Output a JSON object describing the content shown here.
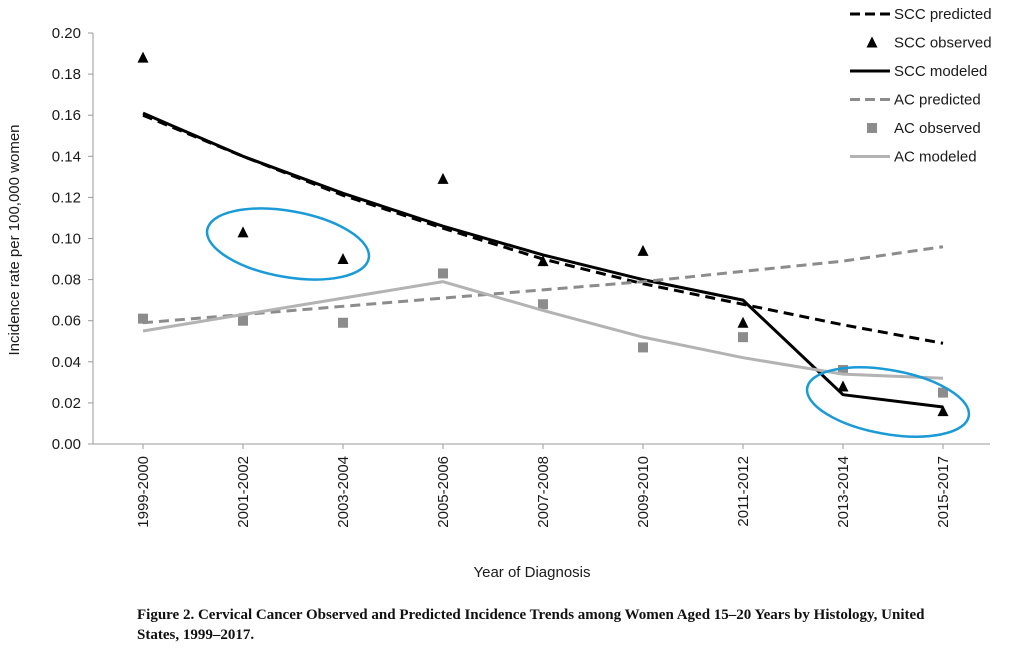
{
  "chart_data": {
    "type": "line",
    "title": "",
    "xlabel": "Year of Diagnosis",
    "ylabel": "Incidence rate per 100,000 women",
    "ylim": [
      0,
      0.2
    ],
    "yticks": [
      "0.00",
      "0.02",
      "0.04",
      "0.06",
      "0.08",
      "0.10",
      "0.12",
      "0.14",
      "0.16",
      "0.18",
      "0.20"
    ],
    "categories": [
      "1999-2000",
      "2001-2002",
      "2003-2004",
      "2005-2006",
      "2007-2008",
      "2009-2010",
      "2011-2012",
      "2013-2014",
      "2015-2017"
    ],
    "legend_position": "top-right",
    "series": [
      {
        "name": "SCC predicted",
        "style": "dashed-line",
        "color": "#000000",
        "values": [
          0.16,
          0.14,
          0.121,
          0.105,
          0.09,
          0.078,
          0.068,
          0.058,
          0.049
        ]
      },
      {
        "name": "SCC observed",
        "style": "triangle-marker",
        "color": "#000000",
        "values": [
          0.188,
          0.103,
          0.09,
          0.129,
          0.089,
          0.094,
          0.059,
          0.028,
          0.016
        ]
      },
      {
        "name": "SCC modeled",
        "style": "solid-line",
        "color": "#000000",
        "values": [
          0.161,
          0.14,
          0.122,
          0.106,
          0.092,
          0.08,
          0.07,
          0.024,
          0.018
        ]
      },
      {
        "name": "AC predicted",
        "style": "dashed-line",
        "color": "#8c8c8c",
        "values": [
          0.059,
          0.063,
          0.067,
          0.071,
          0.075,
          0.079,
          0.084,
          0.089,
          0.096
        ]
      },
      {
        "name": "AC observed",
        "style": "square-marker",
        "color": "#8c8c8c",
        "values": [
          0.061,
          0.06,
          0.059,
          0.083,
          0.068,
          0.047,
          0.052,
          0.036,
          0.025
        ]
      },
      {
        "name": "AC modeled",
        "style": "solid-line",
        "color": "#b3b3b3",
        "values": [
          0.055,
          0.063,
          0.071,
          0.079,
          0.065,
          0.052,
          0.042,
          0.034,
          0.032
        ]
      }
    ],
    "annotations": [
      {
        "type": "ellipse",
        "color": "#1a9ad6",
        "around": [
          "2001-2002",
          "2003-2004"
        ],
        "y_center": 0.097
      },
      {
        "type": "ellipse",
        "color": "#1a9ad6",
        "around": [
          "2013-2014",
          "2015-2017"
        ],
        "y_center": 0.025
      }
    ]
  },
  "caption": "Figure 2. Cervical Cancer Observed and Predicted Incidence Trends among Women Aged 15–20 Years by Histology, United States, 1999–2017."
}
